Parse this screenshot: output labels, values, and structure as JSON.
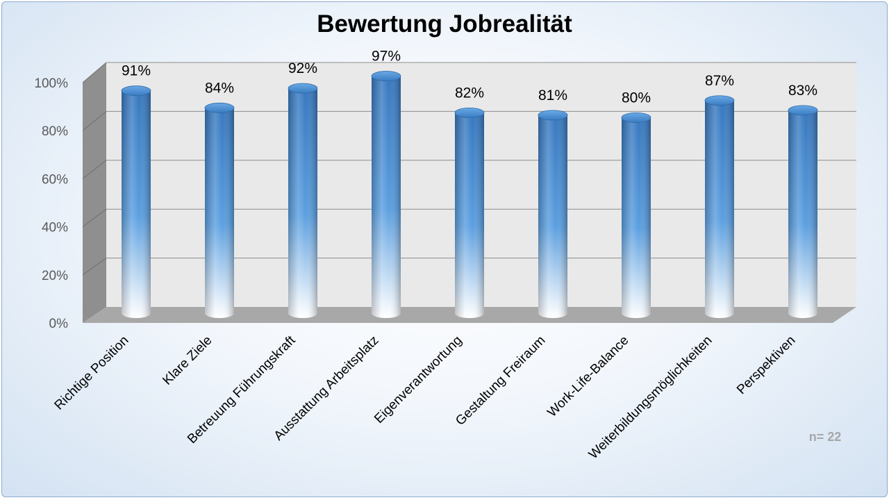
{
  "chart_data": {
    "type": "bar",
    "title": "Bewertung Jobrealität",
    "categories": [
      "Richtige Position",
      "Klare Ziele",
      "Betreuung Führungskraft",
      "Ausstattung Arbeitsplatz",
      "Eigenverantwortung",
      "Gestaltung Freiraum",
      "Work-Life-Balance",
      "Weiterbildungsmöglichkeiten",
      "Perspektiven"
    ],
    "values": [
      91,
      84,
      92,
      97,
      82,
      81,
      80,
      87,
      83
    ],
    "data_labels": [
      "91%",
      "84%",
      "92%",
      "97%",
      "82%",
      "81%",
      "80%",
      "87%",
      "83%"
    ],
    "y_ticks": [
      "0%",
      "20%",
      "40%",
      "60%",
      "80%",
      "100%"
    ],
    "ylim": [
      0,
      100
    ],
    "grid": true,
    "legend": "none",
    "colors": {
      "bar_top": "#3d7fc4",
      "bar_mid": "#5a9ee0",
      "bar_bottom": "#ffffff",
      "wall": "#e8e8e8",
      "floor": "#a8a8a8",
      "side_wall": "#8f8f8f"
    },
    "note": "n= 22"
  }
}
